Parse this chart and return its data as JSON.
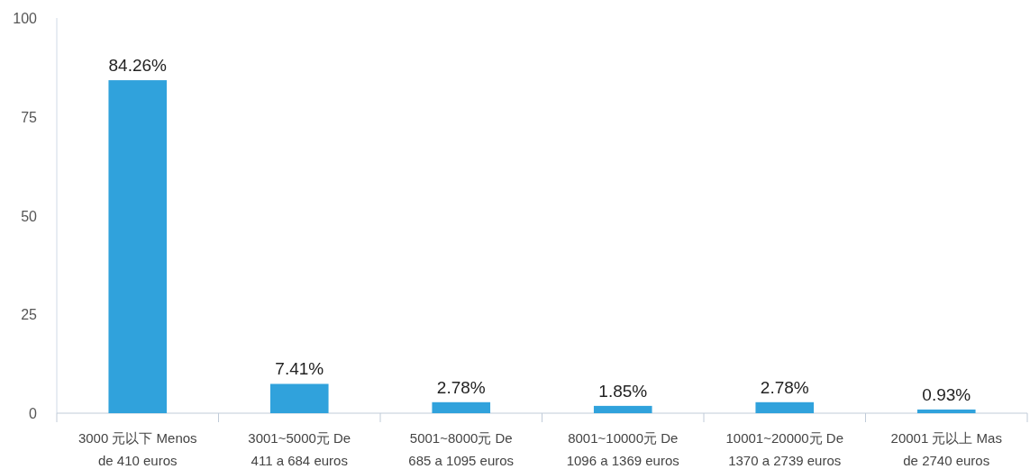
{
  "chart_data": {
    "type": "bar",
    "categories": [
      "3000 元以下 Menos de 410 euros",
      "3001~5000元 De 411 a 684 euros",
      "5001~8000元 De 685 a 1095 euros",
      "8001~10000元 De 1096 a 1369 euros",
      "10001~20000元 De 1370 a 2739 euros",
      "20001 元以上 Mas de 2740 euros"
    ],
    "values": [
      84.26,
      7.41,
      2.78,
      1.85,
      2.78,
      0.93
    ],
    "value_labels": [
      "84.26%",
      "7.41%",
      "2.78%",
      "1.85%",
      "2.78%",
      "0.93%"
    ],
    "color": "#30a2dc",
    "ylim": [
      0,
      100
    ],
    "yticks": [
      0,
      25,
      50,
      75,
      100
    ],
    "grid": false
  }
}
